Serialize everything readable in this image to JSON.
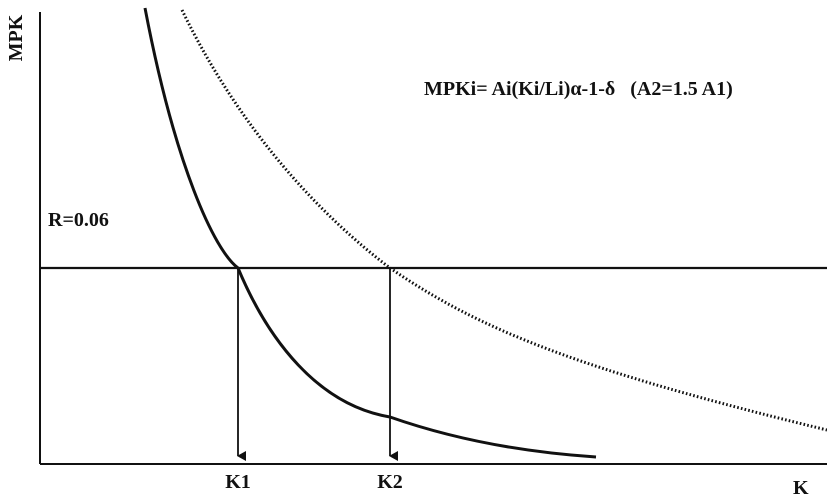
{
  "diagram": {
    "y_axis_label": "MPK",
    "x_axis_label": "K",
    "formula": "MPKi= Ai(Ki/Li)α-1-δ   (A2=1.5 A1)",
    "rate_label": "R=0.06",
    "k1_label": "K1",
    "k2_label": "K2"
  },
  "colors": {
    "ink": "#111111",
    "background": "#ffffff"
  }
}
